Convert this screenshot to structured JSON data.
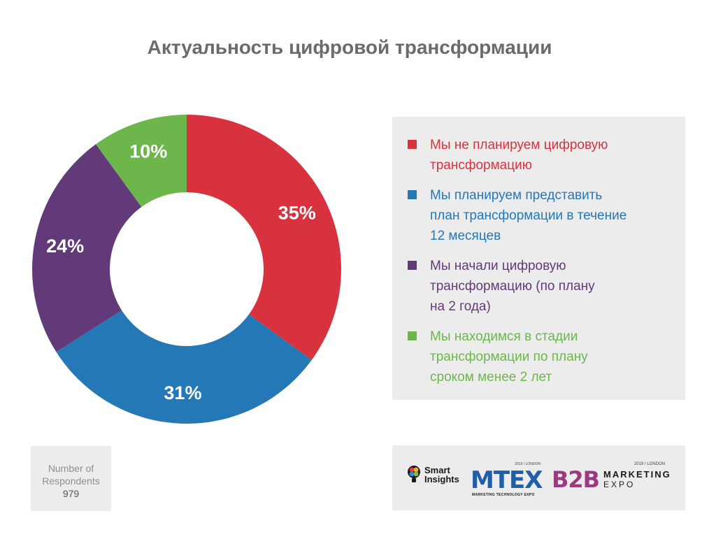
{
  "title": "Актуальность цифровой трансформации",
  "chart_data": {
    "type": "pie",
    "donut": true,
    "title": "Актуальность цифровой трансформации",
    "slices": [
      {
        "label": "Мы не планируем цифровую\nтрансформацию",
        "value": 35,
        "display": "35%",
        "color": "#d8323f"
      },
      {
        "label": "Мы планируем представить\nплан трансформации в течение\n12 месяцев",
        "value": 31,
        "display": "31%",
        "color": "#2478b5"
      },
      {
        "label": "Мы начали цифровую\nтрансформацию (по плану\nна 2 года)",
        "value": 24,
        "display": "24%",
        "color": "#633a79"
      },
      {
        "label": "Мы находимся в стадии\nтрансформации по плану\nсроком менее 2 лет",
        "value": 10,
        "display": "10%",
        "color": "#6cb64b"
      }
    ],
    "legend_position": "right"
  },
  "respondents": {
    "label": "Number of\nRespondents",
    "count": "979"
  },
  "logos": {
    "smart_insights": "Smart\nInsights",
    "mtex": {
      "year": "2019 / LONDON",
      "name": "MTEX",
      "sub": "MARKETING TECHNOLOGY EXPO"
    },
    "b2b": {
      "year": "2019 / LONDON",
      "name": "B2B",
      "line1": "MARKETING",
      "line2": "EXPO"
    }
  }
}
